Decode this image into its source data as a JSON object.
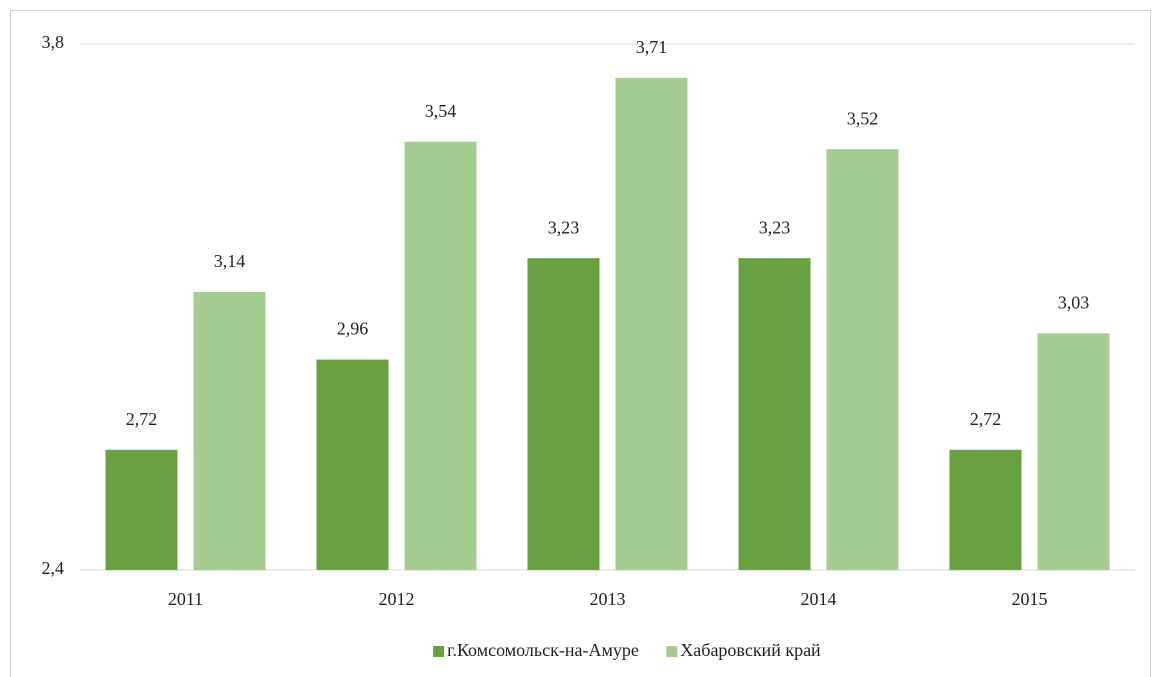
{
  "chart_data": {
    "type": "bar",
    "categories": [
      "2011",
      "2012",
      "2013",
      "2014",
      "2015"
    ],
    "series": [
      {
        "name": "г.Комсомольск-на-Амуре",
        "color": "#68a042",
        "values": [
          2.72,
          2.96,
          3.23,
          3.23,
          2.72
        ],
        "value_labels": [
          "2,72",
          "2,96",
          "3,23",
          "3,23",
          "2,72"
        ]
      },
      {
        "name": "Хабаровский край",
        "color": "#a6cc92",
        "values": [
          3.14,
          3.54,
          3.71,
          3.52,
          3.03
        ],
        "value_labels": [
          "3,14",
          "3,54",
          "3,71",
          "3,52",
          "3,03"
        ]
      }
    ],
    "ylim": [
      2.4,
      3.8
    ],
    "yticks": [
      {
        "value": 2.4,
        "label": "2,4"
      },
      {
        "value": 3.8,
        "label": "3,8"
      }
    ],
    "grid": true,
    "legend": "bottom"
  }
}
